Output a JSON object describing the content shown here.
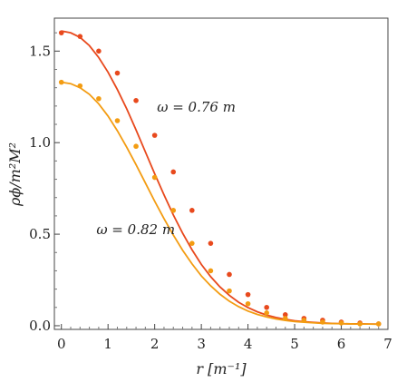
{
  "chart_data": {
    "type": "line",
    "xlabel": "r [m⁻¹]",
    "ylabel": "ρϕ/m²M²",
    "xlim": [
      -0.15,
      7.0
    ],
    "ylim": [
      -0.02,
      1.68
    ],
    "xticks": [
      0,
      1,
      2,
      3,
      4,
      5,
      6,
      7
    ],
    "xtick_labels": [
      "0",
      "1",
      "2",
      "3",
      "4",
      "5",
      "6",
      "7"
    ],
    "yticks": [
      0.0,
      0.5,
      1.0,
      1.5
    ],
    "ytick_labels": [
      "0.0",
      "0.5",
      "1.0",
      "1.5"
    ],
    "grid": false,
    "series": [
      {
        "name": "ω = 0.76 m",
        "color": "#e8491d",
        "curve_x": [
          0,
          0.2,
          0.4,
          0.6,
          0.8,
          1.0,
          1.2,
          1.4,
          1.6,
          1.8,
          2.0,
          2.2,
          2.4,
          2.6,
          2.8,
          3.0,
          3.2,
          3.4,
          3.6,
          3.8,
          4.0,
          4.2,
          4.4,
          4.6,
          4.8,
          5.0,
          5.2,
          5.4,
          5.6,
          5.8,
          6.0,
          6.2,
          6.4,
          6.6,
          6.8
        ],
        "curve_y": [
          1.61,
          1.6,
          1.575,
          1.53,
          1.465,
          1.385,
          1.29,
          1.185,
          1.07,
          0.95,
          0.83,
          0.715,
          0.605,
          0.505,
          0.415,
          0.335,
          0.268,
          0.212,
          0.166,
          0.128,
          0.099,
          0.076,
          0.058,
          0.045,
          0.035,
          0.027,
          0.022,
          0.018,
          0.015,
          0.013,
          0.011,
          0.01,
          0.01,
          0.009,
          0.009
        ],
        "points_x": [
          0,
          0.4,
          0.8,
          1.2,
          1.6,
          2.0,
          2.4,
          2.8,
          3.2,
          3.6,
          4.0,
          4.4,
          4.8,
          5.2,
          5.6,
          6.0,
          6.4,
          6.8
        ],
        "points_y": [
          1.6,
          1.58,
          1.5,
          1.38,
          1.23,
          1.04,
          0.84,
          0.63,
          0.45,
          0.28,
          0.17,
          0.1,
          0.06,
          0.04,
          0.03,
          0.02,
          0.015,
          0.01
        ]
      },
      {
        "name": "ω = 0.82 m",
        "color": "#f39c12",
        "curve_x": [
          0,
          0.2,
          0.4,
          0.6,
          0.8,
          1.0,
          1.2,
          1.4,
          1.6,
          1.8,
          2.0,
          2.2,
          2.4,
          2.6,
          2.8,
          3.0,
          3.2,
          3.4,
          3.6,
          3.8,
          4.0,
          4.2,
          4.4,
          4.6,
          4.8,
          5.0,
          5.2,
          5.4,
          5.6,
          5.8,
          6.0,
          6.2,
          6.4,
          6.6,
          6.8
        ],
        "curve_y": [
          1.33,
          1.322,
          1.3,
          1.264,
          1.212,
          1.145,
          1.065,
          0.975,
          0.88,
          0.78,
          0.68,
          0.585,
          0.495,
          0.412,
          0.338,
          0.272,
          0.218,
          0.172,
          0.134,
          0.104,
          0.08,
          0.062,
          0.048,
          0.037,
          0.029,
          0.023,
          0.019,
          0.016,
          0.013,
          0.012,
          0.011,
          0.01,
          0.009,
          0.009,
          0.008
        ],
        "points_x": [
          0,
          0.4,
          0.8,
          1.2,
          1.6,
          2.0,
          2.4,
          2.8,
          3.2,
          3.6,
          4.0,
          4.4,
          4.8,
          5.2,
          5.6,
          6.0,
          6.4,
          6.8
        ],
        "points_y": [
          1.33,
          1.31,
          1.24,
          1.12,
          0.98,
          0.81,
          0.63,
          0.45,
          0.3,
          0.19,
          0.12,
          0.07,
          0.04,
          0.03,
          0.02,
          0.015,
          0.01,
          0.01
        ]
      }
    ],
    "annotations": [
      {
        "text": "ω = 0.76 m",
        "x": 2.05,
        "y": 1.17
      },
      {
        "text": "ω = 0.82 m",
        "x": 0.75,
        "y": 0.5
      }
    ]
  }
}
